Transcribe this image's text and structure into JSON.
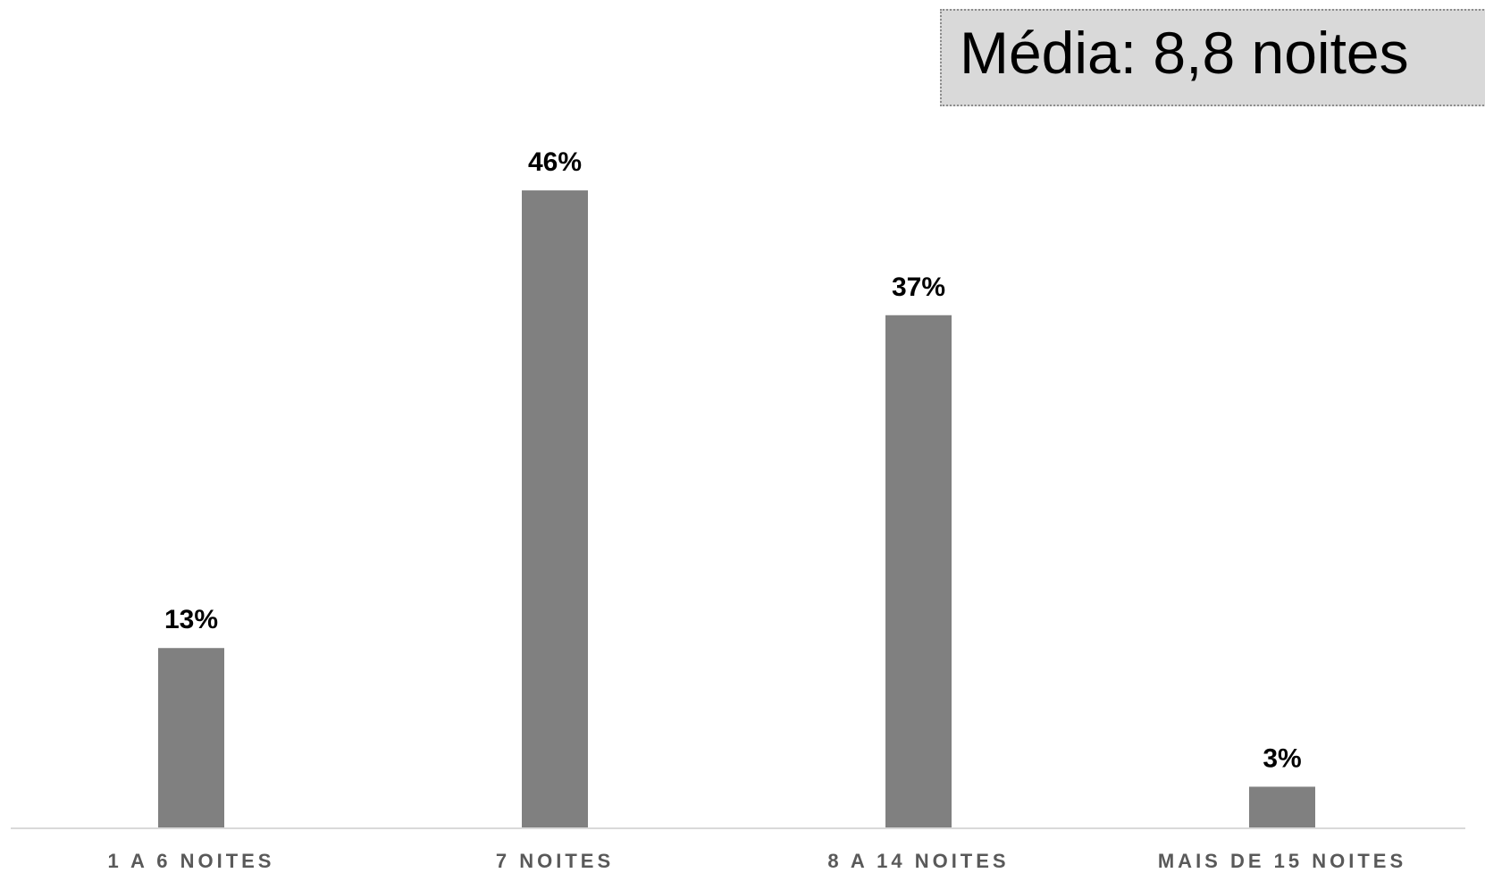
{
  "mean_annotation": {
    "text": "Média: 8,8 noites"
  },
  "colors": {
    "bar": "#808080",
    "axis": "#d9d9d9",
    "category_text": "#595959",
    "value_text": "#000000",
    "annotation_bg": "#d9d9d9"
  },
  "chart_data": {
    "type": "bar",
    "title": "",
    "xlabel": "",
    "ylabel": "",
    "categories": [
      "1 A 6 NOITES",
      "7 NOITES",
      "8 A 14 NOITES",
      "MAIS DE 15 NOITES"
    ],
    "values": [
      13,
      46,
      37,
      3
    ],
    "value_labels": [
      "13%",
      "46%",
      "37%",
      "3%"
    ],
    "unit": "%",
    "ylim": [
      0,
      50
    ],
    "grid": false,
    "legend": "none"
  }
}
